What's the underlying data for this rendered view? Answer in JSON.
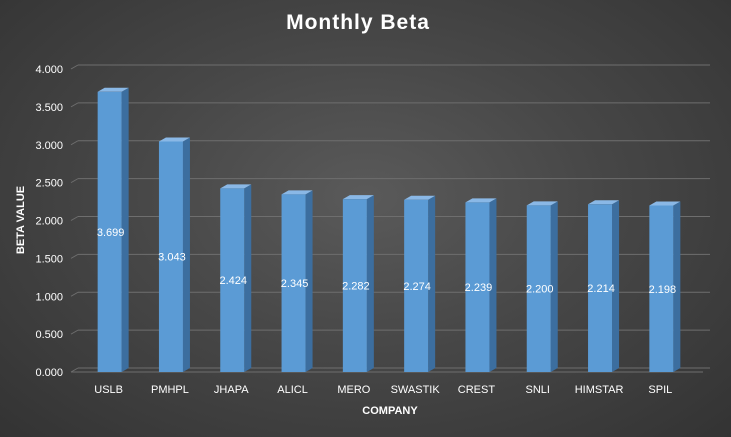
{
  "chart_data": {
    "type": "bar",
    "style": "3d-column",
    "title": "Monthly Beta",
    "xlabel": "COMPANY",
    "ylabel": "BETA VALUE",
    "categories": [
      "USLB",
      "PMHPL",
      "JHAPA",
      "ALICL",
      "MERO",
      "SWASTIK",
      "CREST",
      "SNLI",
      "HIMSTAR",
      "SPIL"
    ],
    "values": [
      3.699,
      3.043,
      2.424,
      2.345,
      2.282,
      2.274,
      2.239,
      2.2,
      2.214,
      2.198
    ],
    "data_labels": [
      "3.699",
      "3.043",
      "2.424",
      "2.345",
      "2.282",
      "2.274",
      "2.239",
      "2.200",
      "2.214",
      "2.198"
    ],
    "ylim": [
      0,
      4
    ],
    "yticks": [
      "0.000",
      "0.500",
      "1.000",
      "1.500",
      "2.000",
      "2.500",
      "3.000",
      "3.500",
      "4.000"
    ],
    "ytick_values": [
      0,
      0.5,
      1,
      1.5,
      2,
      2.5,
      3,
      3.5,
      4
    ],
    "grid": true,
    "legend": "none",
    "colors": {
      "bar_front": "#5b9bd5",
      "bar_side": "#3c6e9f",
      "bar_top": "#8ab8e6",
      "background": "#404040",
      "gridline": "#6e6e6e",
      "text": "#ffffff"
    }
  }
}
